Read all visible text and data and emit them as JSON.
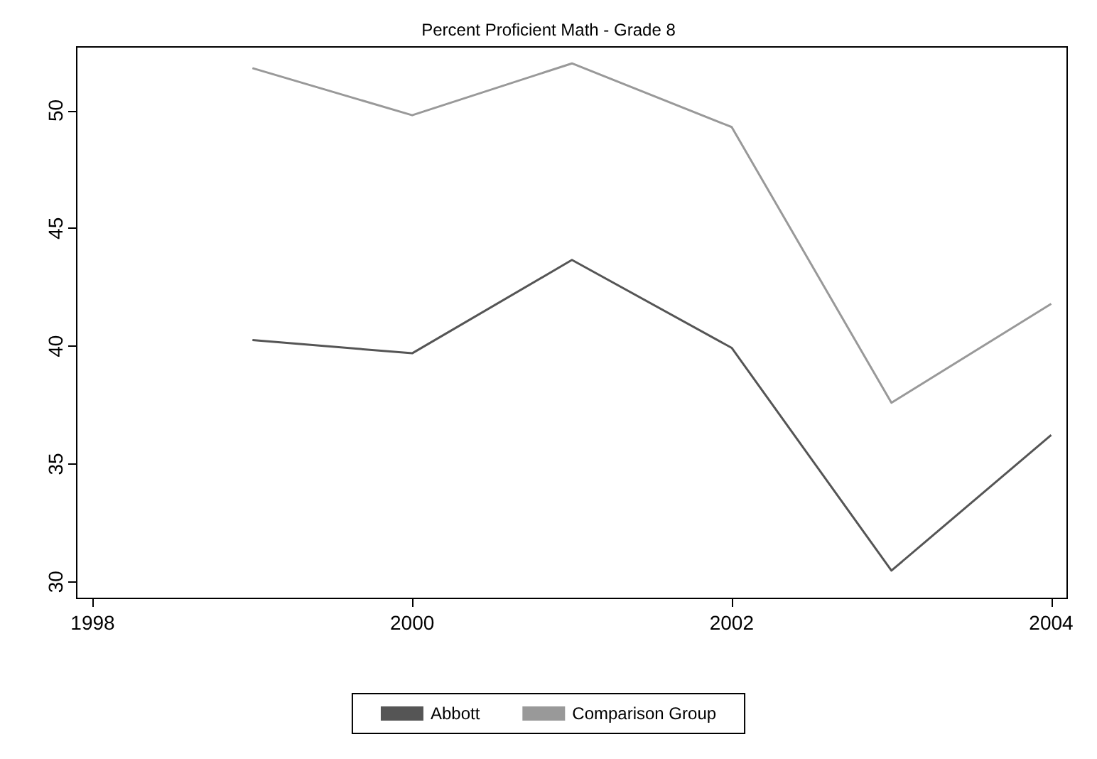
{
  "chart_data": {
    "type": "line",
    "title": "Percent Proficient Math - Grade 8",
    "x": [
      1999,
      2000,
      2001,
      2002,
      2003,
      2004
    ],
    "series": [
      {
        "name": "Abbott",
        "color": "#555555",
        "values": [
          40.26,
          39.7,
          43.66,
          39.93,
          30.48,
          36.23
        ]
      },
      {
        "name": "Comparison Group",
        "color": "#999999",
        "values": [
          51.8,
          49.8,
          52.0,
          49.3,
          37.6,
          41.8
        ]
      }
    ],
    "xlim": [
      1997.9,
      2004.1
    ],
    "xticks": [
      1998,
      2000,
      2002,
      2004
    ],
    "ylim": [
      29.3,
      52.7
    ],
    "yticks": [
      30,
      35,
      40,
      45,
      50
    ],
    "grid": false,
    "legend": "bottom",
    "marker": "none",
    "line_style": "solid"
  }
}
